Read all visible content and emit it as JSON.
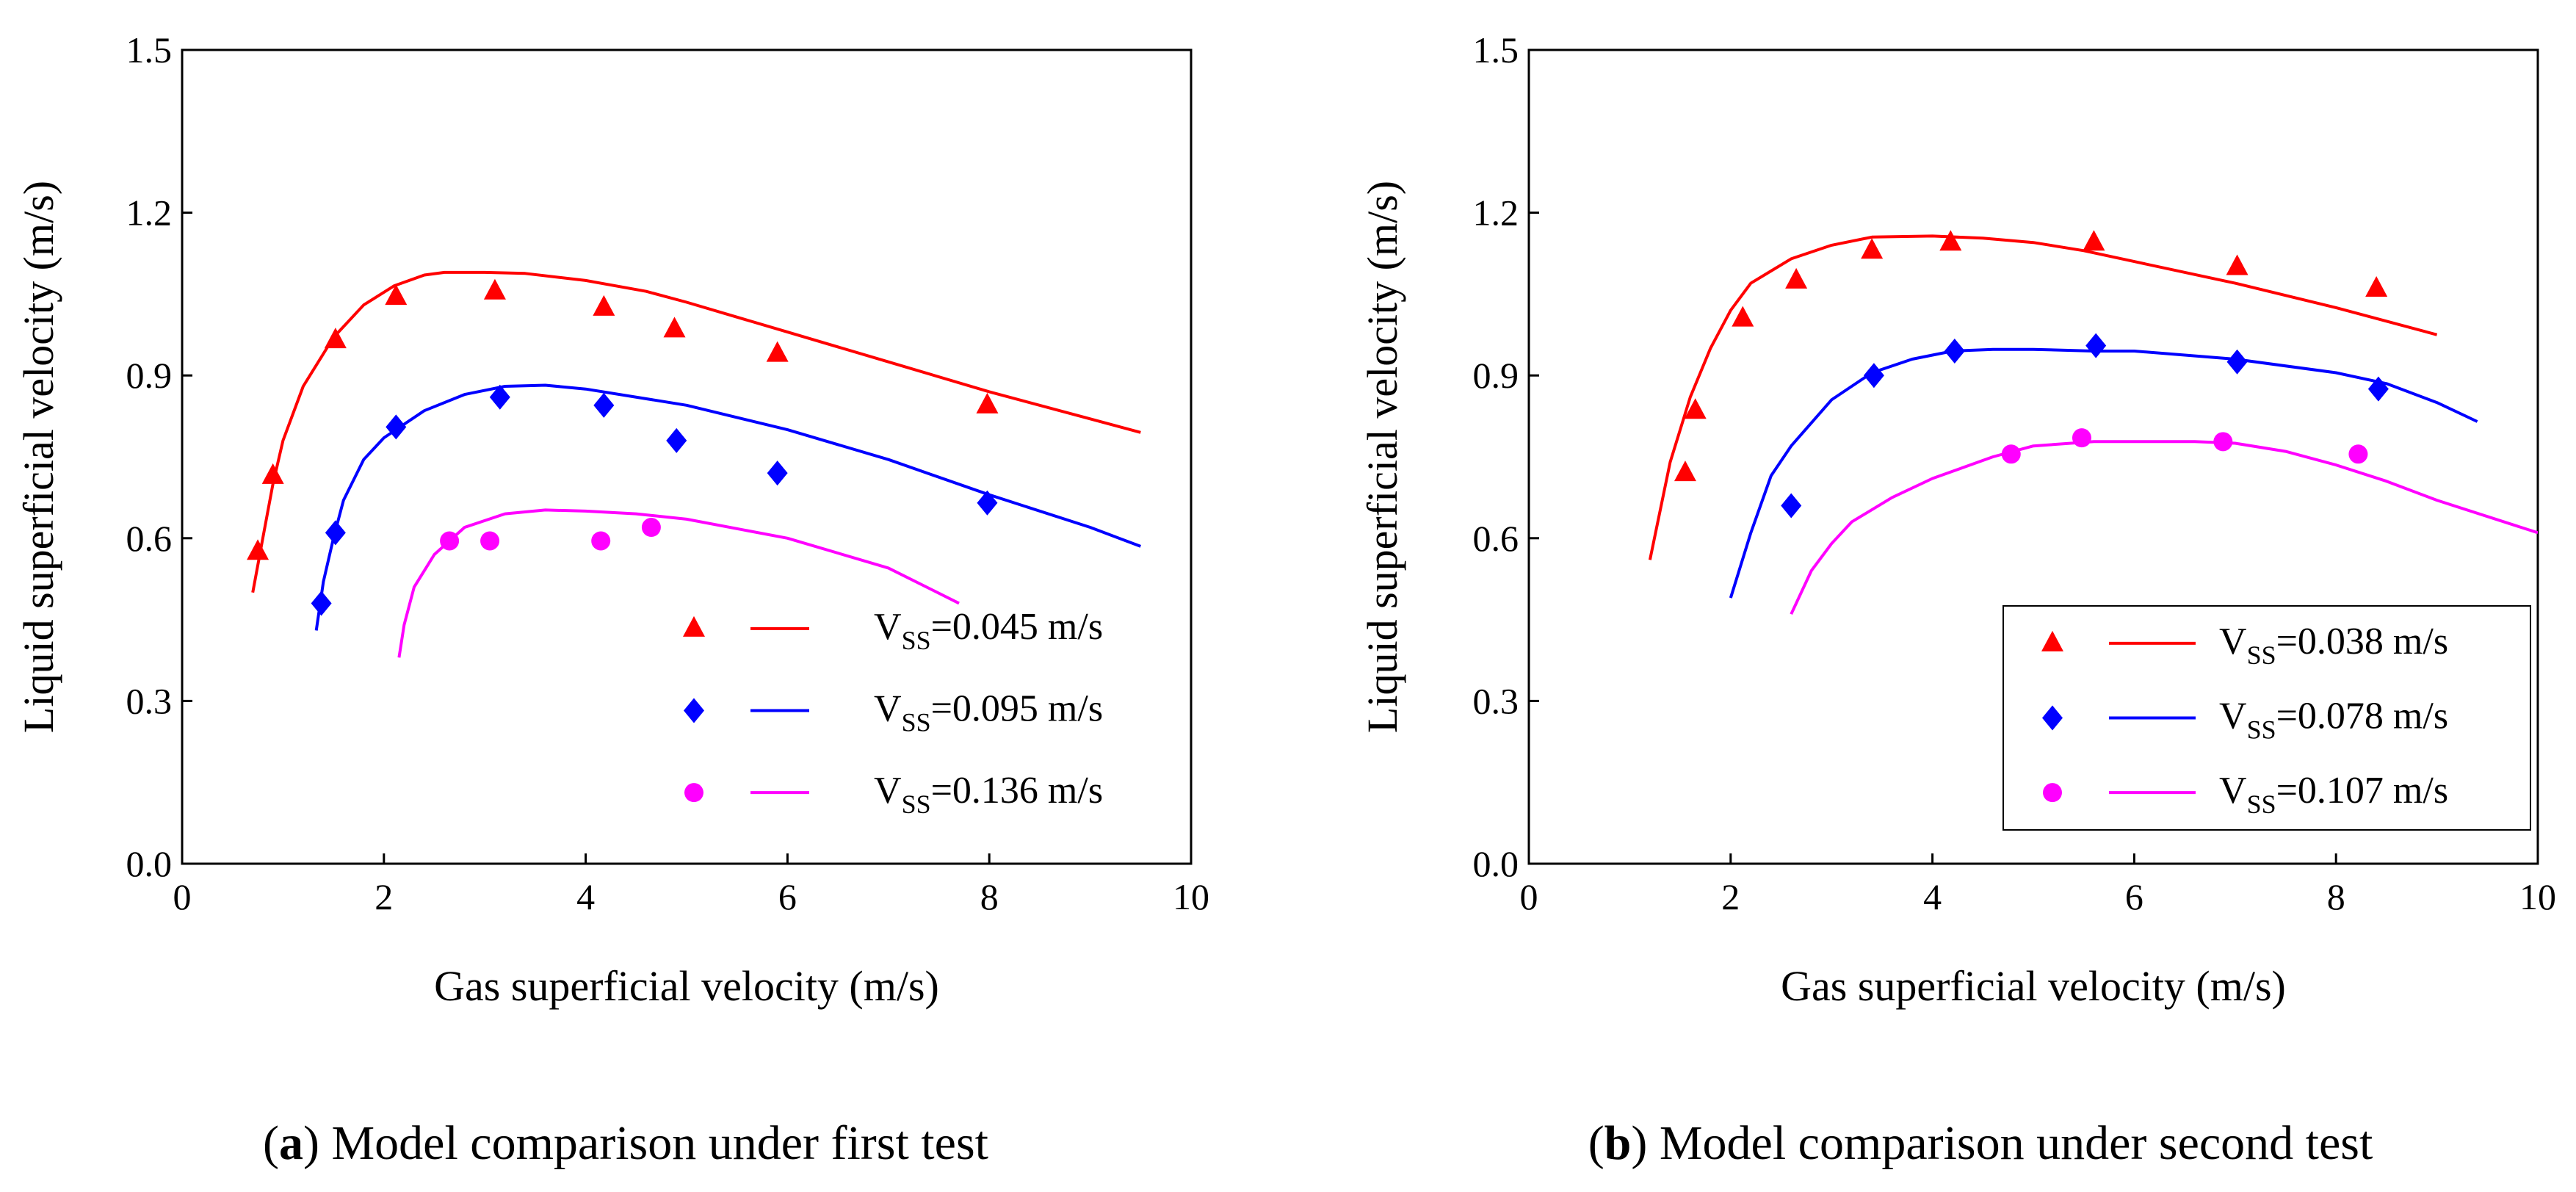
{
  "chart_data": [
    {
      "type": "line",
      "caption_letter": "a",
      "caption": "Model comparison under first test",
      "xlabel": "Gas superficial velocity (m/s)",
      "ylabel": "Liquid superficial velocity (m/s)",
      "xlim": [
        0,
        10
      ],
      "ylim": [
        0.0,
        1.5
      ],
      "xticks": [
        "0",
        "2",
        "4",
        "6",
        "8",
        "10"
      ],
      "yticks": [
        "0.0",
        "0.3",
        "0.6",
        "0.9",
        "1.2",
        "1.5"
      ],
      "grid": false,
      "legend_position": "bottom-right",
      "series": [
        {
          "name_main": "V",
          "name_sub": "SS",
          "name_rest": "=0.045 m/s",
          "color": "#ff0000",
          "marker": "triangle",
          "points_x": [
            0.75,
            0.9,
            1.52,
            2.12,
            3.1,
            4.18,
            4.88,
            5.9,
            7.98
          ],
          "points_y": [
            0.575,
            0.715,
            0.965,
            1.045,
            1.055,
            1.025,
            0.985,
            0.94,
            0.845
          ],
          "line_x": [
            0.7,
            0.8,
            0.9,
            1.0,
            1.2,
            1.5,
            1.8,
            2.1,
            2.4,
            2.6,
            3.0,
            3.4,
            4.0,
            4.6,
            5.0,
            6.0,
            7.0,
            8.0,
            9.0,
            9.5
          ],
          "line_y": [
            0.5,
            0.6,
            0.7,
            0.78,
            0.88,
            0.97,
            1.03,
            1.065,
            1.085,
            1.09,
            1.09,
            1.088,
            1.075,
            1.055,
            1.035,
            0.98,
            0.925,
            0.87,
            0.82,
            0.795
          ]
        },
        {
          "name_main": "V",
          "name_sub": "SS",
          "name_rest": "=0.095 m/s",
          "color": "#0000ff",
          "marker": "diamond",
          "points_x": [
            1.38,
            1.52,
            2.12,
            3.15,
            4.18,
            4.9,
            5.9,
            7.98
          ],
          "points_y": [
            0.48,
            0.61,
            0.805,
            0.86,
            0.845,
            0.78,
            0.72,
            0.665
          ],
          "line_x": [
            1.33,
            1.4,
            1.5,
            1.6,
            1.8,
            2.0,
            2.4,
            2.8,
            3.2,
            3.6,
            4.0,
            5.0,
            6.0,
            7.0,
            8.0,
            9.0,
            9.5
          ],
          "line_y": [
            0.43,
            0.52,
            0.6,
            0.67,
            0.745,
            0.785,
            0.835,
            0.865,
            0.88,
            0.882,
            0.875,
            0.845,
            0.8,
            0.745,
            0.68,
            0.62,
            0.585
          ]
        },
        {
          "name_main": "V",
          "name_sub": "SS",
          "name_rest": "=0.136 m/s",
          "color": "#ff00ff",
          "marker": "circle",
          "points_x": [
            2.65,
            3.05,
            4.15,
            4.65
          ],
          "points_y": [
            0.595,
            0.595,
            0.595,
            0.62
          ],
          "line_x": [
            2.15,
            2.2,
            2.3,
            2.5,
            2.8,
            3.2,
            3.6,
            4.0,
            4.5,
            5.0,
            6.0,
            7.0,
            7.7
          ],
          "line_y": [
            0.38,
            0.44,
            0.51,
            0.57,
            0.62,
            0.645,
            0.652,
            0.65,
            0.645,
            0.635,
            0.6,
            0.545,
            0.48
          ]
        }
      ]
    },
    {
      "type": "line",
      "caption_letter": "b",
      "caption": "Model comparison under second test",
      "xlabel": "Gas superficial velocity (m/s)",
      "ylabel": "Liquid superficial velocity (m/s)",
      "xlim": [
        0,
        10
      ],
      "ylim": [
        0.0,
        1.5
      ],
      "xticks": [
        "0",
        "2",
        "4",
        "6",
        "8",
        "10"
      ],
      "yticks": [
        "0.0",
        "0.3",
        "0.6",
        "0.9",
        "1.2",
        "1.5"
      ],
      "grid": false,
      "legend_position": "bottom-right",
      "series": [
        {
          "name_main": "V",
          "name_sub": "SS",
          "name_rest": "=0.038 m/s",
          "color": "#ff0000",
          "marker": "triangle",
          "points_x": [
            1.55,
            1.65,
            2.12,
            2.65,
            3.4,
            4.18,
            5.6,
            7.02,
            8.4
          ],
          "points_y": [
            0.72,
            0.835,
            1.005,
            1.075,
            1.13,
            1.145,
            1.145,
            1.1,
            1.06
          ],
          "line_x": [
            1.2,
            1.4,
            1.6,
            1.8,
            2.0,
            2.2,
            2.6,
            3.0,
            3.4,
            4.0,
            4.5,
            5.0,
            5.5,
            6.0,
            7.0,
            8.0,
            9.0
          ],
          "line_y": [
            0.56,
            0.74,
            0.86,
            0.95,
            1.02,
            1.07,
            1.115,
            1.14,
            1.155,
            1.157,
            1.153,
            1.145,
            1.13,
            1.11,
            1.07,
            1.025,
            0.975
          ]
        },
        {
          "name_main": "V",
          "name_sub": "SS",
          "name_rest": "=0.078 m/s",
          "color": "#0000ff",
          "marker": "diamond",
          "points_x": [
            2.6,
            3.42,
            4.22,
            5.62,
            7.02,
            8.42
          ],
          "points_y": [
            0.66,
            0.9,
            0.945,
            0.955,
            0.925,
            0.875
          ],
          "line_x": [
            2.0,
            2.2,
            2.4,
            2.6,
            3.0,
            3.4,
            3.8,
            4.2,
            4.6,
            5.0,
            5.6,
            6.0,
            7.0,
            8.0,
            8.5,
            9.0,
            9.4
          ],
          "line_y": [
            0.49,
            0.61,
            0.715,
            0.77,
            0.855,
            0.905,
            0.93,
            0.945,
            0.948,
            0.948,
            0.945,
            0.945,
            0.93,
            0.905,
            0.885,
            0.85,
            0.815
          ]
        },
        {
          "name_main": "V",
          "name_sub": "SS",
          "name_rest": "=0.107 m/s",
          "color": "#ff00ff",
          "marker": "circle",
          "points_x": [
            4.78,
            5.48,
            6.88,
            8.22
          ],
          "points_y": [
            0.755,
            0.785,
            0.778,
            0.755
          ],
          "line_x": [
            2.6,
            2.8,
            3.0,
            3.2,
            3.6,
            4.0,
            4.6,
            5.0,
            5.6,
            6.0,
            6.6,
            7.0,
            7.5,
            8.0,
            8.5,
            9.0,
            10.0
          ],
          "line_y": [
            0.46,
            0.54,
            0.59,
            0.63,
            0.675,
            0.71,
            0.75,
            0.77,
            0.778,
            0.778,
            0.778,
            0.775,
            0.76,
            0.735,
            0.705,
            0.67,
            0.61
          ]
        }
      ]
    }
  ]
}
